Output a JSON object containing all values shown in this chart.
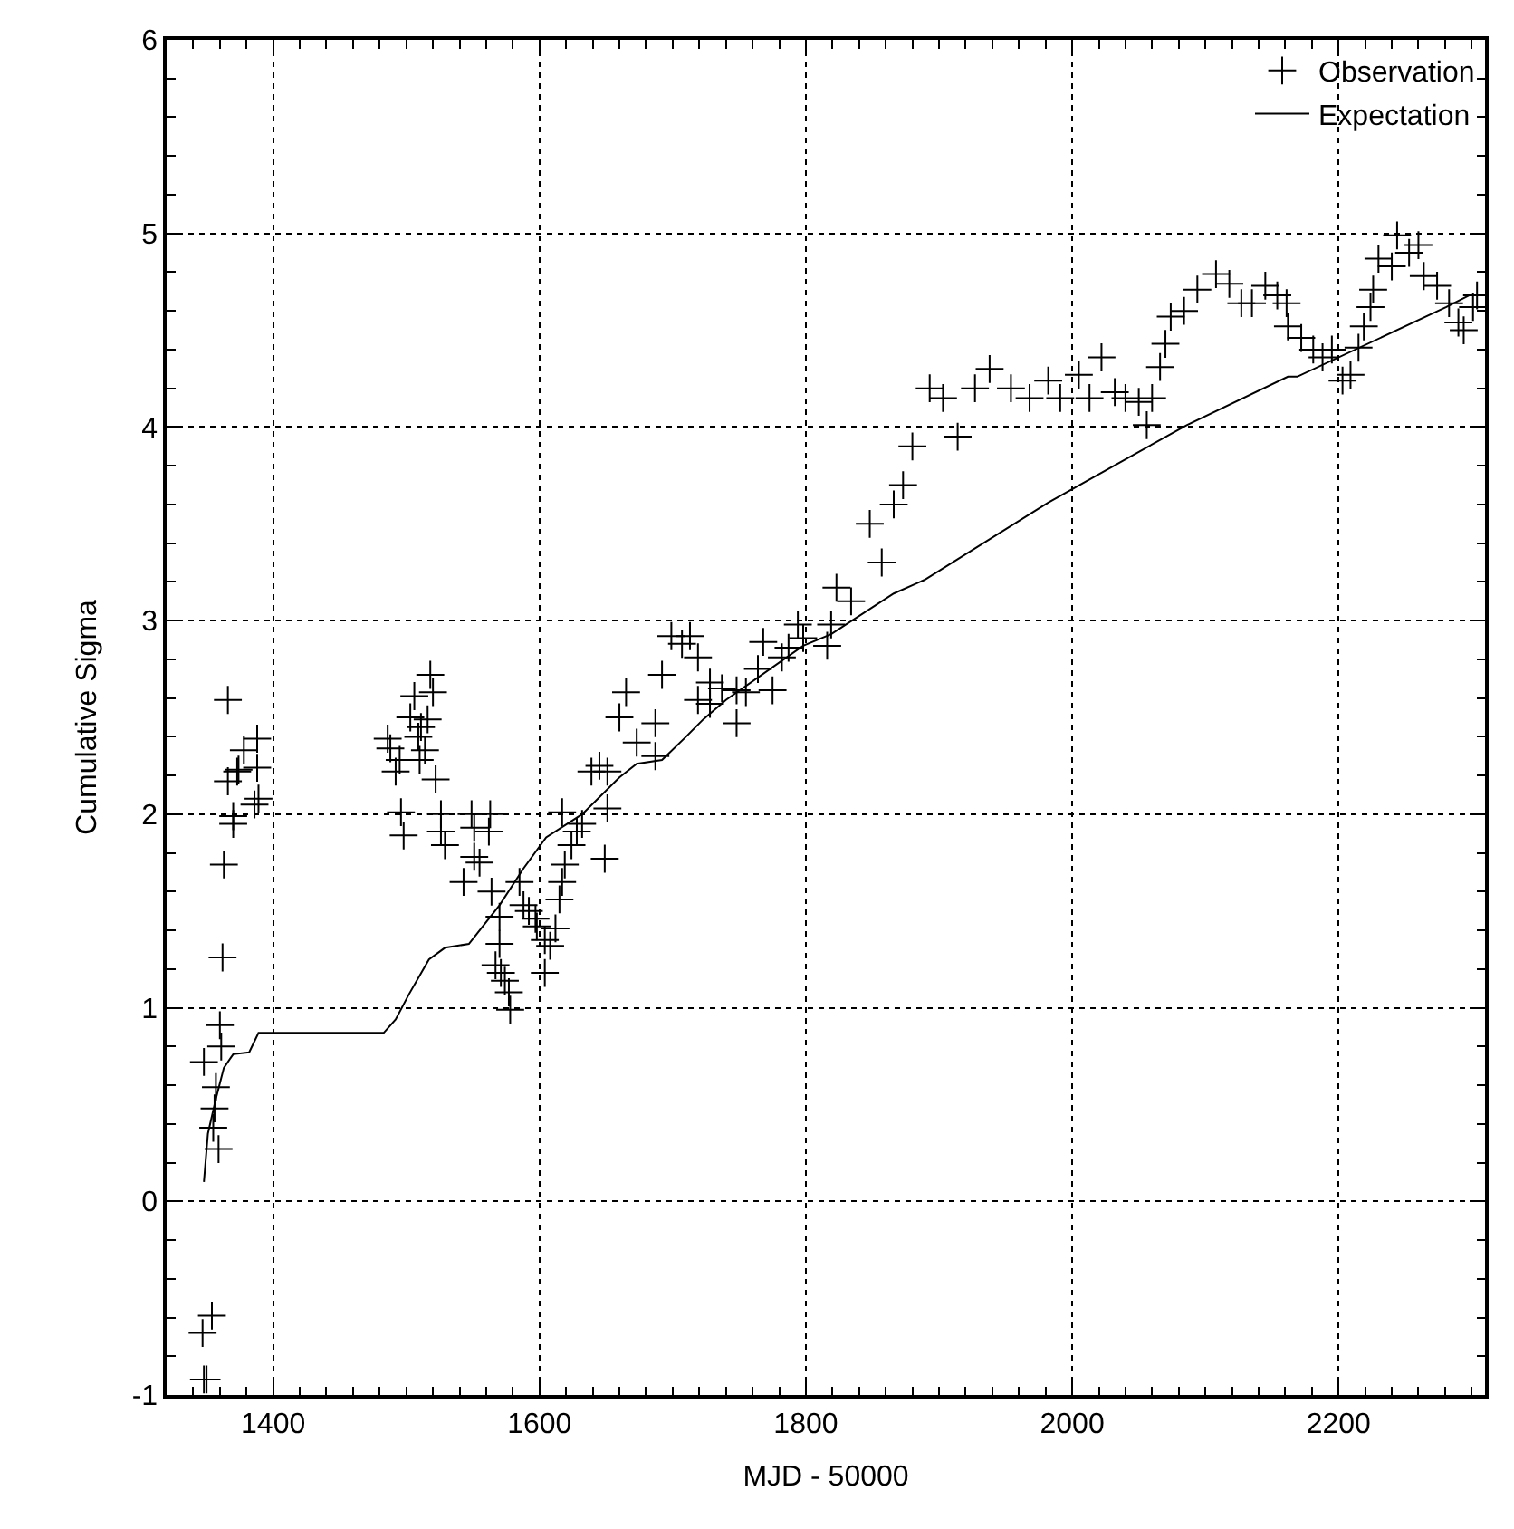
{
  "chart_data": {
    "type": "scatter",
    "xlabel": "MJD - 50000",
    "ylabel": "Cumulative Sigma",
    "xlim": [
      1320,
      2310
    ],
    "ylim": [
      -1,
      6
    ],
    "xticks": [
      1400,
      1600,
      1800,
      2000,
      2200
    ],
    "yticks": [
      -1,
      0,
      1,
      2,
      3,
      4,
      5,
      6
    ],
    "grid": true,
    "legend": "top right",
    "series": [
      {
        "name": "Observation",
        "marker": "cross",
        "color": "#000000",
        "x": [
          1347,
          1348,
          1350,
          1354,
          1355,
          1356,
          1357,
          1359,
          1361,
          1360,
          1348,
          1362,
          1363,
          1366,
          1370,
          1370,
          1373,
          1374,
          1378,
          1366,
          1388,
          1388,
          1386,
          1389,
          1486,
          1488,
          1495,
          1492,
          1496,
          1498,
          1506,
          1503,
          1509,
          1511,
          1516,
          1518,
          1520,
          1510,
          1514,
          1522,
          1526,
          1526,
          1529,
          1543,
          1549,
          1551,
          1551,
          1555,
          1563,
          1562,
          1564,
          1570,
          1570,
          1567,
          1571,
          1574,
          1577,
          1578,
          1585,
          1588,
          1592,
          1597,
          1598,
          1604,
          1608,
          1612,
          1604,
          1615,
          1617,
          1619,
          1624,
          1628,
          1617,
          1632,
          1649,
          1639,
          1645,
          1651,
          1651,
          1660,
          1665,
          1673,
          1687,
          1692,
          1687,
          1699,
          1707,
          1713,
          1719,
          1728,
          1737,
          1748,
          1755,
          1719,
          1728,
          1748,
          1764,
          1768,
          1775,
          1782,
          1787,
          1794,
          1798,
          1816,
          1819,
          1823,
          1834,
          1848,
          1857,
          1866,
          1873,
          1880,
          1893,
          1903,
          1914,
          1927,
          1938,
          1954,
          1968,
          1982,
          1991,
          2005,
          2013,
          2022,
          2032,
          2040,
          2050,
          2056,
          2060,
          2066,
          2070,
          2074,
          2084,
          2094,
          2108,
          2118,
          2127,
          2135,
          2145,
          2154,
          2161,
          2162,
          2172,
          2181,
          2188,
          2195,
          2203,
          2209,
          2215,
          2219,
          2224,
          2226,
          2230,
          2240,
          2244,
          2253,
          2260,
          2264,
          2274,
          2283,
          2290,
          2294,
          2301,
          2304
        ],
        "values": [
          -0.68,
          -0.92,
          -0.92,
          -0.59,
          0.38,
          0.48,
          0.59,
          0.27,
          0.8,
          0.91,
          0.72,
          1.26,
          1.74,
          2.17,
          1.95,
          1.99,
          2.22,
          2.23,
          2.33,
          2.59,
          2.39,
          2.24,
          2.05,
          2.08,
          2.39,
          2.34,
          2.28,
          2.22,
          2.01,
          1.89,
          2.61,
          2.5,
          2.4,
          2.45,
          2.49,
          2.72,
          2.63,
          2.28,
          2.33,
          2.18,
          2.0,
          1.91,
          1.84,
          1.65,
          2.0,
          1.93,
          1.78,
          1.75,
          2.0,
          1.91,
          1.6,
          1.47,
          1.33,
          1.22,
          1.18,
          1.14,
          1.08,
          0.99,
          1.65,
          1.53,
          1.5,
          1.46,
          1.42,
          1.35,
          1.32,
          1.41,
          1.18,
          1.56,
          1.65,
          1.74,
          1.84,
          1.91,
          2.01,
          1.95,
          1.77,
          2.22,
          2.25,
          2.03,
          2.22,
          2.5,
          2.63,
          2.37,
          2.47,
          2.72,
          2.3,
          2.92,
          2.88,
          2.92,
          2.81,
          2.68,
          2.65,
          2.64,
          2.63,
          2.59,
          2.57,
          2.47,
          2.75,
          2.89,
          2.64,
          2.81,
          2.86,
          2.98,
          2.91,
          2.87,
          2.98,
          3.17,
          3.1,
          3.5,
          3.3,
          3.6,
          3.7,
          3.9,
          4.2,
          4.15,
          3.95,
          4.2,
          4.3,
          4.2,
          4.15,
          4.24,
          4.15,
          4.27,
          4.15,
          4.36,
          4.18,
          4.15,
          4.13,
          4.01,
          4.15,
          4.31,
          4.43,
          4.57,
          4.6,
          4.71,
          4.79,
          4.74,
          4.64,
          4.64,
          4.73,
          4.68,
          4.64,
          4.52,
          4.46,
          4.4,
          4.36,
          4.4,
          4.24,
          4.27,
          4.41,
          4.52,
          4.62,
          4.71,
          4.87,
          4.83,
          4.99,
          4.9,
          4.94,
          4.78,
          4.73,
          4.64,
          4.54,
          4.5,
          4.62,
          4.68
        ]
      },
      {
        "name": "Expectation",
        "type": "line",
        "line_style": "solid",
        "color": "#000000",
        "x": [
          1348,
          1351,
          1357,
          1363,
          1370,
          1382,
          1389,
          1483,
          1492,
          1502,
          1517,
          1529,
          1547,
          1570,
          1588,
          1605,
          1632,
          1660,
          1673,
          1692,
          1710,
          1723,
          1740,
          1798,
          1819,
          1866,
          1889,
          1982,
          2086,
          2162,
          2169,
          2281,
          2298
        ],
        "values": [
          0.1,
          0.35,
          0.53,
          0.69,
          0.76,
          0.77,
          0.87,
          0.87,
          0.94,
          1.07,
          1.25,
          1.31,
          1.33,
          1.53,
          1.72,
          1.88,
          2.0,
          2.19,
          2.26,
          2.28,
          2.4,
          2.49,
          2.59,
          2.87,
          2.93,
          3.14,
          3.21,
          3.61,
          4.01,
          4.26,
          4.26,
          4.62,
          4.68
        ]
      }
    ]
  }
}
